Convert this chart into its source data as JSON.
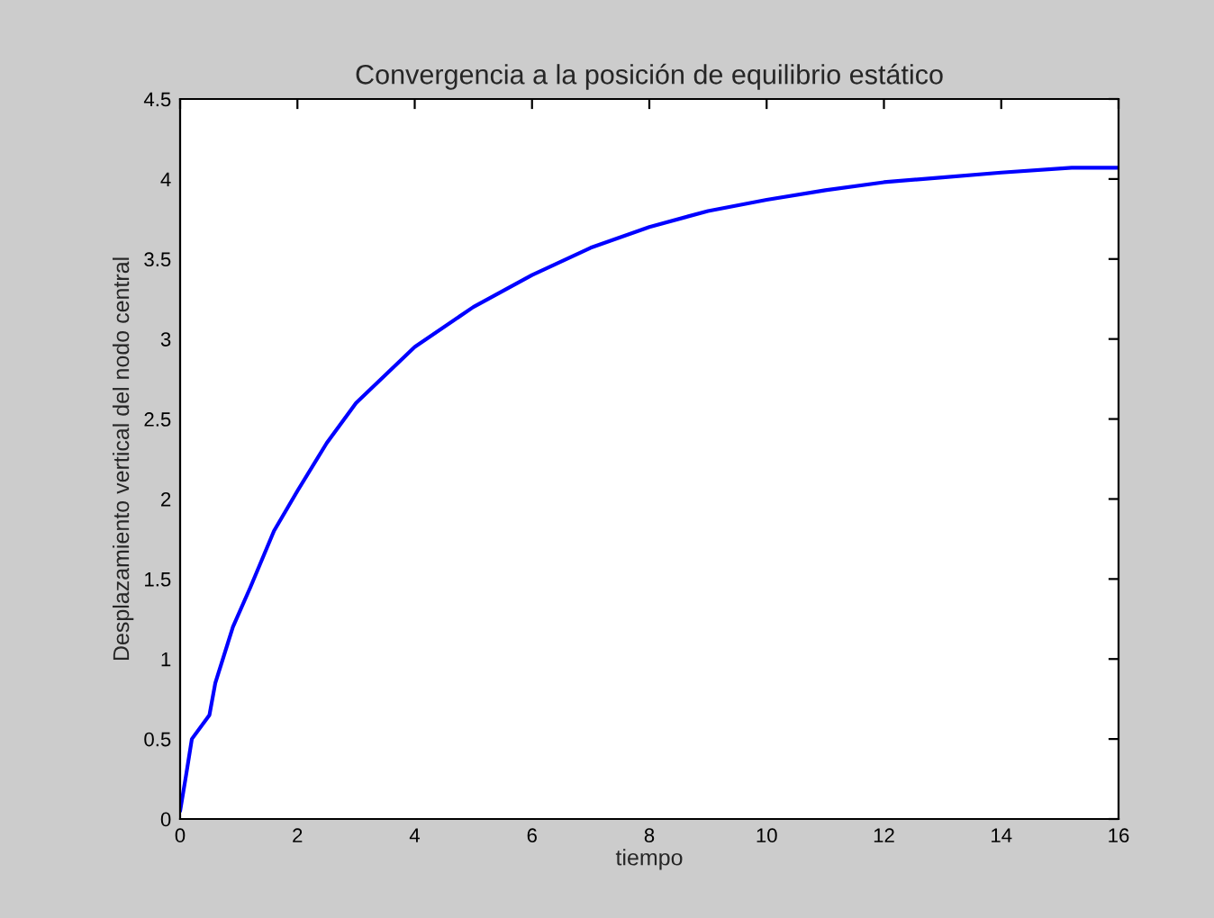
{
  "chart_data": {
    "type": "line",
    "title": "Convergencia a la posición de equilibrio estático",
    "xlabel": "tiempo",
    "ylabel": "Desplazamiento vertical del nodo central",
    "series": [
      {
        "color": "#0000ff",
        "x": [
          0,
          0.1,
          0.2,
          0.5,
          0.6,
          0.9,
          1.2,
          1.6,
          2,
          2.5,
          3,
          4,
          5,
          6,
          7,
          8,
          9,
          10,
          11,
          12,
          13,
          14,
          15.2,
          16
        ],
        "values": [
          0.05,
          0.27,
          0.5,
          0.65,
          0.85,
          1.2,
          1.45,
          1.8,
          2.05,
          2.35,
          2.6,
          2.95,
          3.2,
          3.4,
          3.57,
          3.7,
          3.8,
          3.87,
          3.93,
          3.98,
          4.01,
          4.04,
          4.07,
          4.07
        ]
      }
    ],
    "xlim": [
      0,
      16
    ],
    "xticks": [
      0,
      2,
      4,
      6,
      8,
      10,
      12,
      14,
      16
    ],
    "ylim": [
      0,
      4.5
    ],
    "yticks": [
      0,
      0.5,
      1,
      1.5,
      2,
      2.5,
      3,
      3.5,
      4,
      4.5
    ],
    "grid": false,
    "legend": false,
    "marker": "none",
    "line_style": "solid"
  }
}
